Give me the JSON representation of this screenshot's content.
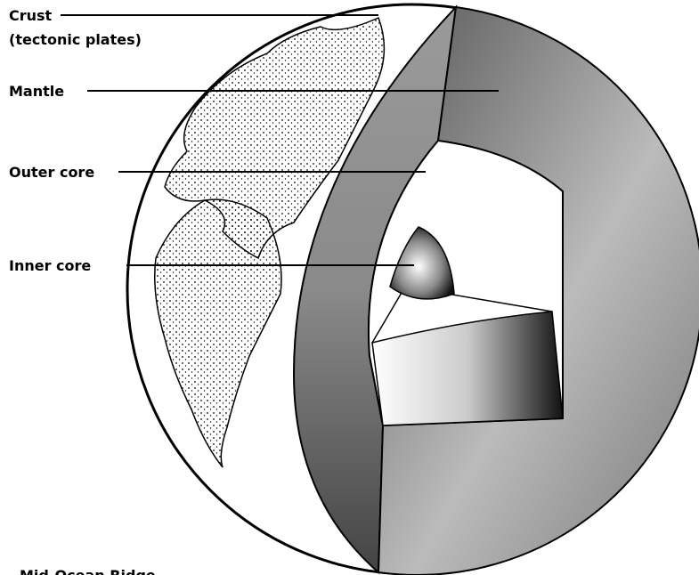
{
  "labels": [
    {
      "text": "Crust",
      "subtext": "(tectonic plates)"
    },
    {
      "text": "Mantle"
    },
    {
      "text": "Outer core"
    },
    {
      "text": "Inner core"
    }
  ],
  "footer": "Mid-Ocean Ridge"
}
